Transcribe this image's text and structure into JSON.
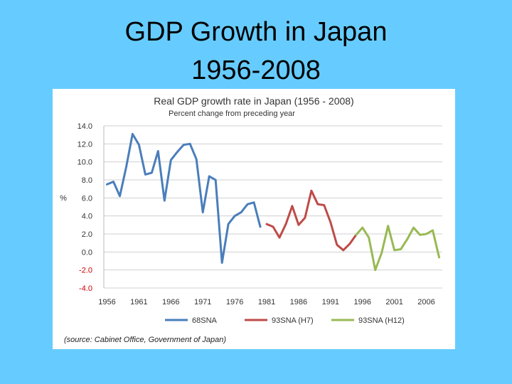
{
  "slide": {
    "title_line1": "GDP Growth in Japan",
    "title_line2": "1956-2008"
  },
  "chart_data": {
    "type": "line",
    "title": "Real GDP growth rate in Japan (1956 - 2008)",
    "subtitle": "Percent  change from preceding year",
    "ylabel": "%",
    "xlabel": "",
    "ylim": [
      -4.0,
      14.0
    ],
    "xlim": [
      1955.5,
      2008.5
    ],
    "yticks": [
      "14.0",
      "12.0",
      "10.0",
      "8.0",
      "6.0",
      "4.0",
      "2.0",
      "0.0",
      "-2.0",
      "-4.0"
    ],
    "xticks": [
      "1956",
      "1961",
      "1966",
      "1971",
      "1976",
      "1981",
      "1986",
      "1991",
      "1996",
      "2001",
      "2006"
    ],
    "grid": true,
    "legend": "bottom",
    "source": "(source:  Cabinet Office, Government of Japan)",
    "series": [
      {
        "name": "68SNA",
        "color": "#4a7ebb",
        "x": [
          1956,
          1957,
          1958,
          1959,
          1960,
          1961,
          1962,
          1963,
          1964,
          1965,
          1966,
          1967,
          1968,
          1969,
          1970,
          1971,
          1972,
          1973,
          1974,
          1975,
          1976,
          1977,
          1978,
          1979,
          1980
        ],
        "y": [
          7.5,
          7.8,
          6.2,
          9.4,
          13.1,
          11.9,
          8.6,
          8.8,
          11.2,
          5.7,
          10.2,
          11.1,
          11.9,
          12.0,
          10.3,
          4.4,
          8.4,
          8.0,
          -1.2,
          3.1,
          4.0,
          4.4,
          5.3,
          5.5,
          2.8
        ]
      },
      {
        "name": "93SNA (H7)",
        "color": "#be4b48",
        "x": [
          1981,
          1982,
          1983,
          1984,
          1985,
          1986,
          1987,
          1988,
          1989,
          1990,
          1991,
          1992,
          1993,
          1994,
          1995
        ],
        "y": [
          3.1,
          2.8,
          1.6,
          3.1,
          5.1,
          3.0,
          3.8,
          6.8,
          5.3,
          5.2,
          3.3,
          0.8,
          0.2,
          0.9,
          1.9
        ]
      },
      {
        "name": "93SNA (H12)",
        "color": "#98b954",
        "x": [
          1995,
          1996,
          1997,
          1998,
          1999,
          2000,
          2001,
          2002,
          2003,
          2004,
          2005,
          2006,
          2007,
          2008
        ],
        "y": [
          1.9,
          2.7,
          1.6,
          -2.0,
          -0.1,
          2.9,
          0.2,
          0.3,
          1.4,
          2.7,
          1.9,
          2.0,
          2.4,
          -0.6
        ]
      }
    ]
  }
}
